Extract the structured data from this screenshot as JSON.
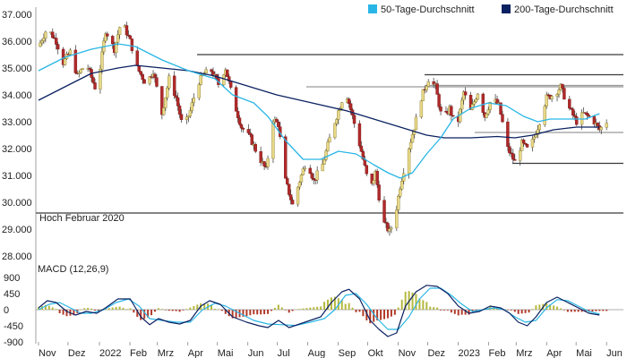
{
  "chart_data": [
    {
      "type": "candlestick",
      "ylim": [
        28000,
        37000
      ],
      "yticks": [
        "37.000",
        "36.000",
        "35.000",
        "34.000",
        "33.000",
        "32.000",
        "31.000",
        "30.000",
        "29.000",
        "28.000"
      ],
      "xticks": [
        "Nov",
        "Dez",
        "2022",
        "Feb",
        "Mrz",
        "Apr",
        "Mai",
        "Jun",
        "Jul",
        "Aug",
        "Sep",
        "Okt",
        "Nov",
        "Dez",
        "2023",
        "Feb",
        "Mrz",
        "Apr",
        "Mai",
        "Jun"
      ],
      "legend": [
        {
          "name": "50-Tage-Durchschnitt",
          "color": "#29b6e6"
        },
        {
          "name": "200-Tage-Durchschnitt",
          "color": "#0b2161"
        }
      ],
      "price_path": [
        [
          0,
          35800
        ],
        [
          5,
          36500
        ],
        [
          10,
          36000
        ],
        [
          14,
          35200
        ],
        [
          18,
          35600
        ],
        [
          22,
          34700
        ],
        [
          27,
          35200
        ],
        [
          33,
          34100
        ],
        [
          38,
          36400
        ],
        [
          43,
          35700
        ],
        [
          47,
          36800
        ],
        [
          52,
          36000
        ],
        [
          56,
          35000
        ],
        [
          61,
          34400
        ],
        [
          65,
          34900
        ],
        [
          70,
          33300
        ],
        [
          74,
          34600
        ],
        [
          78,
          33900
        ],
        [
          82,
          32700
        ],
        [
          86,
          33400
        ],
        [
          90,
          34400
        ],
        [
          94,
          34800
        ],
        [
          98,
          34900
        ],
        [
          102,
          34400
        ],
        [
          106,
          35000
        ],
        [
          110,
          33900
        ],
        [
          115,
          32800
        ],
        [
          120,
          32400
        ],
        [
          124,
          31800
        ],
        [
          129,
          31200
        ],
        [
          133,
          33100
        ],
        [
          136,
          32900
        ],
        [
          140,
          30800
        ],
        [
          144,
          29900
        ],
        [
          148,
          30800
        ],
        [
          152,
          31600
        ],
        [
          156,
          30800
        ],
        [
          161,
          31400
        ],
        [
          166,
          32600
        ],
        [
          171,
          33600
        ],
        [
          174,
          34200
        ],
        [
          178,
          33200
        ],
        [
          183,
          31900
        ],
        [
          188,
          30400
        ],
        [
          191,
          31100
        ],
        [
          195,
          29300
        ],
        [
          199,
          28900
        ],
        [
          202,
          29400
        ],
        [
          205,
          30600
        ],
        [
          209,
          31800
        ],
        [
          213,
          32800
        ],
        [
          217,
          33900
        ],
        [
          221,
          34600
        ],
        [
          225,
          34300
        ],
        [
          229,
          33000
        ],
        [
          233,
          33500
        ],
        [
          237,
          32700
        ],
        [
          241,
          34100
        ],
        [
          245,
          33400
        ],
        [
          249,
          34100
        ],
        [
          253,
          33200
        ],
        [
          257,
          33900
        ],
        [
          261,
          33600
        ],
        [
          266,
          32000
        ],
        [
          270,
          31500
        ],
        [
          274,
          32200
        ],
        [
          278,
          31900
        ],
        [
          283,
          32800
        ],
        [
          288,
          33900
        ],
        [
          292,
          34000
        ],
        [
          296,
          34300
        ],
        [
          300,
          33600
        ],
        [
          305,
          33000
        ],
        [
          309,
          33300
        ],
        [
          314,
          33100
        ],
        [
          318,
          32700
        ],
        [
          322,
          33000
        ]
      ],
      "reference_lines": [
        {
          "value": 29600,
          "label": "Hoch Februar 2020",
          "style": "dark"
        },
        {
          "value": 35500,
          "style": "dark"
        },
        {
          "value": 34300,
          "style": "light"
        },
        {
          "value": 34750,
          "style": "dark"
        },
        {
          "value": 34350,
          "style": "light"
        },
        {
          "value": 32600,
          "style": "light"
        },
        {
          "value": 31450,
          "style": "dark"
        }
      ],
      "sma50": [
        [
          0,
          34900
        ],
        [
          15,
          35400
        ],
        [
          30,
          35700
        ],
        [
          45,
          35900
        ],
        [
          55,
          35800
        ],
        [
          70,
          35300
        ],
        [
          85,
          34900
        ],
        [
          100,
          34600
        ],
        [
          110,
          34000
        ],
        [
          122,
          33700
        ],
        [
          130,
          33200
        ],
        [
          140,
          32300
        ],
        [
          150,
          31600
        ],
        [
          160,
          31600
        ],
        [
          170,
          31900
        ],
        [
          180,
          31800
        ],
        [
          190,
          31400
        ],
        [
          198,
          31100
        ],
        [
          205,
          30900
        ],
        [
          212,
          31100
        ],
        [
          220,
          31800
        ],
        [
          228,
          32400
        ],
        [
          235,
          33100
        ],
        [
          245,
          33500
        ],
        [
          255,
          33700
        ],
        [
          265,
          33600
        ],
        [
          275,
          33200
        ],
        [
          283,
          33000
        ],
        [
          290,
          33100
        ],
        [
          300,
          33100
        ],
        [
          310,
          33100
        ],
        [
          318,
          33300
        ]
      ],
      "sma200": [
        [
          0,
          33800
        ],
        [
          15,
          34300
        ],
        [
          30,
          34800
        ],
        [
          45,
          35000
        ],
        [
          55,
          35100
        ],
        [
          70,
          35000
        ],
        [
          85,
          34900
        ],
        [
          100,
          34700
        ],
        [
          115,
          34400
        ],
        [
          135,
          34000
        ],
        [
          155,
          33700
        ],
        [
          175,
          33400
        ],
        [
          190,
          33100
        ],
        [
          200,
          32900
        ],
        [
          210,
          32700
        ],
        [
          220,
          32500
        ],
        [
          230,
          32400
        ],
        [
          245,
          32400
        ],
        [
          260,
          32450
        ],
        [
          270,
          32400
        ],
        [
          280,
          32500
        ],
        [
          292,
          32700
        ],
        [
          305,
          32800
        ],
        [
          318,
          32800
        ]
      ]
    },
    {
      "type": "bar+line",
      "title": "MACD (12,26,9)",
      "ylim": [
        -900,
        900
      ],
      "yticks": [
        "900",
        "450",
        "0",
        "-450",
        "-900"
      ],
      "macd": [
        [
          0,
          50
        ],
        [
          5,
          250
        ],
        [
          10,
          200
        ],
        [
          16,
          -50
        ],
        [
          21,
          -150
        ],
        [
          27,
          -50
        ],
        [
          33,
          -100
        ],
        [
          38,
          50
        ],
        [
          45,
          300
        ],
        [
          52,
          300
        ],
        [
          58,
          -200
        ],
        [
          63,
          -420
        ],
        [
          68,
          -250
        ],
        [
          74,
          -350
        ],
        [
          80,
          -400
        ],
        [
          86,
          -300
        ],
        [
          92,
          100
        ],
        [
          97,
          250
        ],
        [
          103,
          150
        ],
        [
          110,
          -200
        ],
        [
          118,
          -350
        ],
        [
          125,
          -450
        ],
        [
          130,
          -500
        ],
        [
          136,
          -300
        ],
        [
          142,
          -500
        ],
        [
          148,
          -400
        ],
        [
          154,
          -300
        ],
        [
          160,
          -200
        ],
        [
          166,
          200
        ],
        [
          172,
          500
        ],
        [
          176,
          570
        ],
        [
          182,
          300
        ],
        [
          188,
          -300
        ],
        [
          193,
          -550
        ],
        [
          198,
          -750
        ],
        [
          203,
          -650
        ],
        [
          208,
          100
        ],
        [
          214,
          500
        ],
        [
          220,
          680
        ],
        [
          226,
          650
        ],
        [
          232,
          450
        ],
        [
          238,
          100
        ],
        [
          244,
          -100
        ],
        [
          250,
          -50
        ],
        [
          256,
          100
        ],
        [
          262,
          50
        ],
        [
          267,
          -100
        ],
        [
          272,
          -350
        ],
        [
          277,
          -450
        ],
        [
          282,
          -200
        ],
        [
          288,
          200
        ],
        [
          294,
          350
        ],
        [
          300,
          200
        ],
        [
          306,
          50
        ],
        [
          312,
          -100
        ],
        [
          318,
          -150
        ]
      ],
      "signal": [
        [
          0,
          0
        ],
        [
          6,
          150
        ],
        [
          12,
          200
        ],
        [
          18,
          50
        ],
        [
          24,
          -100
        ],
        [
          30,
          -100
        ],
        [
          37,
          0
        ],
        [
          44,
          200
        ],
        [
          51,
          300
        ],
        [
          57,
          100
        ],
        [
          63,
          -250
        ],
        [
          70,
          -300
        ],
        [
          78,
          -350
        ],
        [
          86,
          -350
        ],
        [
          93,
          0
        ],
        [
          100,
          180
        ],
        [
          106,
          100
        ],
        [
          114,
          -100
        ],
        [
          122,
          -300
        ],
        [
          130,
          -400
        ],
        [
          138,
          -420
        ],
        [
          146,
          -440
        ],
        [
          154,
          -350
        ],
        [
          162,
          -250
        ],
        [
          168,
          0
        ],
        [
          174,
          400
        ],
        [
          180,
          450
        ],
        [
          186,
          150
        ],
        [
          192,
          -250
        ],
        [
          198,
          -550
        ],
        [
          204,
          -550
        ],
        [
          210,
          -200
        ],
        [
          216,
          300
        ],
        [
          222,
          600
        ],
        [
          228,
          600
        ],
        [
          234,
          400
        ],
        [
          240,
          150
        ],
        [
          246,
          -50
        ],
        [
          252,
          0
        ],
        [
          258,
          50
        ],
        [
          264,
          0
        ],
        [
          270,
          -200
        ],
        [
          276,
          -350
        ],
        [
          282,
          -300
        ],
        [
          288,
          50
        ],
        [
          294,
          280
        ],
        [
          300,
          250
        ],
        [
          306,
          100
        ],
        [
          312,
          -50
        ],
        [
          318,
          -120
        ]
      ]
    }
  ]
}
